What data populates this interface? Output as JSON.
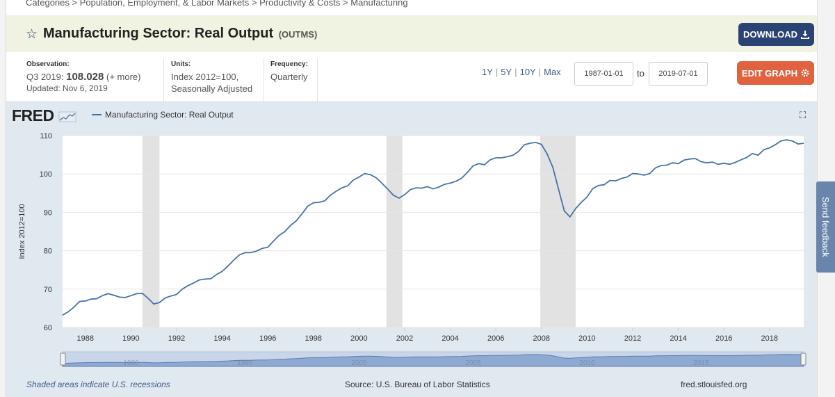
{
  "breadcrumb": {
    "items": [
      "Categories",
      "Population, Employment, & Labor Markets",
      "Productivity & Costs",
      "Manufacturing"
    ],
    "separator": ">"
  },
  "header": {
    "title": "Manufacturing Sector: Real Output",
    "code": "(OUTMS)",
    "download_label": "DOWNLOAD"
  },
  "observation": {
    "label": "Observation:",
    "period": "Q3 2019:",
    "value": "108.028",
    "more": "(+ more)",
    "updated": "Updated: Nov 6, 2019"
  },
  "units": {
    "label": "Units:",
    "line1": "Index 2012=100,",
    "line2": "Seasonally Adjusted"
  },
  "frequency": {
    "label": "Frequency:",
    "value": "Quarterly"
  },
  "range": {
    "options": [
      "1Y",
      "5Y",
      "10Y",
      "Max"
    ],
    "start": "1987-01-01",
    "to_label": "to",
    "end": "2019-07-01",
    "edit_label": "EDIT GRAPH"
  },
  "graph": {
    "logo": "FRED",
    "legend": "Manufacturing Sector: Real Output",
    "line_color": "#4572a7",
    "recession_color": "#e2e2e2"
  },
  "footer": {
    "recession_note": "Shaded areas indicate U.S. recessions",
    "source": "Source: U.S. Bureau of Labor Statistics",
    "site": "fred.stlouisfed.org"
  },
  "feedback_label": "Send feedback",
  "chart_data": {
    "type": "line",
    "title": "Manufacturing Sector: Real Output",
    "xlabel": "",
    "ylabel": "Index 2012=100",
    "xlim": [
      1987.0,
      2019.5
    ],
    "ylim": [
      60,
      110
    ],
    "yticks": [
      60,
      70,
      80,
      90,
      100,
      110
    ],
    "xticks": [
      1988,
      1990,
      1992,
      1994,
      1996,
      1998,
      2000,
      2002,
      2004,
      2006,
      2008,
      2010,
      2012,
      2014,
      2016,
      2018
    ],
    "recessions": [
      [
        1990.5,
        1991.25
      ],
      [
        2001.2,
        2001.9
      ],
      [
        2007.95,
        2009.5
      ]
    ],
    "navigator_labels": [
      "1990",
      "1995",
      "2000",
      "2005",
      "2010",
      "2015"
    ],
    "series": [
      {
        "name": "Manufacturing Sector: Real Output",
        "x": [
          1987.0,
          1987.25,
          1987.5,
          1987.75,
          1988.0,
          1988.25,
          1988.5,
          1988.75,
          1989.0,
          1989.25,
          1989.5,
          1989.75,
          1990.0,
          1990.25,
          1990.5,
          1990.75,
          1991.0,
          1991.25,
          1991.5,
          1991.75,
          1992.0,
          1992.25,
          1992.5,
          1992.75,
          1993.0,
          1993.25,
          1993.5,
          1993.75,
          1994.0,
          1994.25,
          1994.5,
          1994.75,
          1995.0,
          1995.25,
          1995.5,
          1995.75,
          1996.0,
          1996.25,
          1996.5,
          1996.75,
          1997.0,
          1997.25,
          1997.5,
          1997.75,
          1998.0,
          1998.25,
          1998.5,
          1998.75,
          1999.0,
          1999.25,
          1999.5,
          1999.75,
          2000.0,
          2000.25,
          2000.5,
          2000.75,
          2001.0,
          2001.25,
          2001.5,
          2001.75,
          2002.0,
          2002.25,
          2002.5,
          2002.75,
          2003.0,
          2003.25,
          2003.5,
          2003.75,
          2004.0,
          2004.25,
          2004.5,
          2004.75,
          2005.0,
          2005.25,
          2005.5,
          2005.75,
          2006.0,
          2006.25,
          2006.5,
          2006.75,
          2007.0,
          2007.25,
          2007.5,
          2007.75,
          2008.0,
          2008.25,
          2008.5,
          2008.75,
          2009.0,
          2009.25,
          2009.5,
          2009.75,
          2010.0,
          2010.25,
          2010.5,
          2010.75,
          2011.0,
          2011.25,
          2011.5,
          2011.75,
          2012.0,
          2012.25,
          2012.5,
          2012.75,
          2013.0,
          2013.25,
          2013.5,
          2013.75,
          2014.0,
          2014.25,
          2014.5,
          2014.75,
          2015.0,
          2015.25,
          2015.5,
          2015.75,
          2016.0,
          2016.25,
          2016.5,
          2016.75,
          2017.0,
          2017.25,
          2017.5,
          2017.75,
          2018.0,
          2018.25,
          2018.5,
          2018.75,
          2019.0,
          2019.25,
          2019.5
        ],
        "values": [
          63.2,
          64.1,
          65.3,
          66.8,
          66.9,
          67.4,
          67.5,
          68.3,
          68.8,
          68.4,
          67.9,
          67.8,
          68.3,
          68.8,
          68.9,
          67.6,
          66.1,
          66.5,
          67.7,
          68.2,
          68.6,
          70.0,
          70.9,
          71.6,
          72.4,
          72.6,
          72.7,
          73.8,
          74.6,
          76.0,
          77.5,
          78.9,
          79.5,
          79.5,
          79.9,
          80.6,
          80.9,
          82.5,
          84.0,
          85.0,
          86.6,
          87.8,
          89.6,
          91.6,
          92.5,
          92.6,
          93.0,
          94.5,
          95.5,
          96.4,
          96.9,
          98.4,
          99.2,
          100.1,
          99.8,
          99.0,
          97.6,
          96.1,
          94.5,
          93.7,
          94.6,
          95.9,
          96.4,
          96.3,
          96.7,
          96.1,
          96.6,
          97.3,
          97.6,
          98.1,
          98.9,
          100.4,
          102.1,
          102.7,
          102.4,
          103.7,
          104.2,
          104.2,
          104.5,
          104.9,
          105.9,
          107.6,
          108.0,
          108.2,
          107.7,
          105.2,
          101.7,
          96.0,
          90.4,
          88.8,
          91.0,
          92.6,
          94.0,
          96.2,
          97.0,
          97.2,
          98.3,
          98.2,
          98.8,
          99.2,
          100.1,
          100.0,
          99.7,
          100.1,
          101.6,
          102.2,
          102.3,
          102.9,
          102.7,
          103.6,
          103.9,
          104.0,
          103.2,
          102.9,
          103.1,
          102.5,
          102.8,
          102.5,
          103.0,
          103.7,
          104.3,
          105.3,
          104.9,
          106.3,
          106.8,
          107.6,
          108.6,
          108.9,
          108.6,
          107.8,
          108.0
        ]
      }
    ]
  }
}
